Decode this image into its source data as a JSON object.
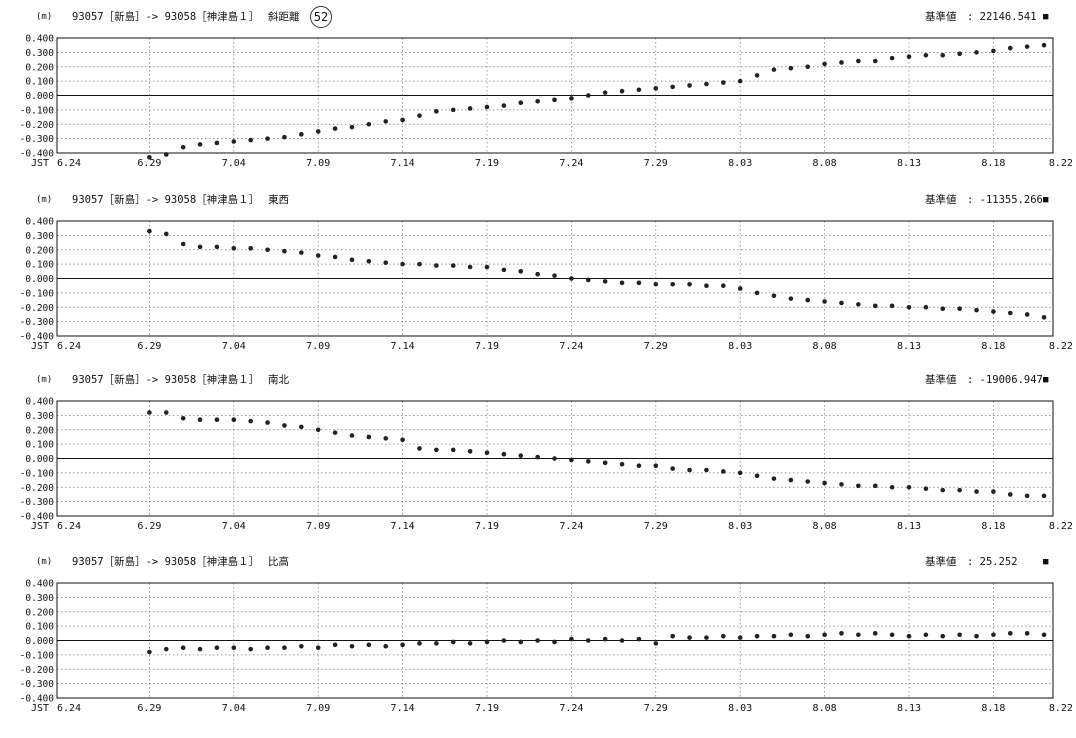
{
  "page_number": "52",
  "chart_data": [
    {
      "type": "scatter",
      "unit": "(m)",
      "station": "93057［新島］-> 93058［神津島１］",
      "component": "斜距離",
      "reference_label": "基準値",
      "reference_value": ": 22146.541",
      "marker": "■",
      "x_prefix": "JST",
      "x_ticks": [
        "6.24",
        "6.29",
        "7.04",
        "7.09",
        "7.14",
        "7.19",
        "7.24",
        "7.29",
        "8.03",
        "8.08",
        "8.13",
        "8.18",
        "8.22"
      ],
      "y_ticks": [
        "0.400",
        "0.300",
        "0.200",
        "0.100",
        "0.000",
        "-0.100",
        "-0.200",
        "-0.300",
        "-0.400"
      ],
      "ylim": [
        -0.4,
        0.4
      ],
      "grid": true,
      "series": [
        {
          "x": [
            "6.29",
            "6.30",
            "7.01",
            "7.02",
            "7.03",
            "7.04",
            "7.05",
            "7.06",
            "7.07",
            "7.08",
            "7.09",
            "7.10",
            "7.11",
            "7.12",
            "7.13",
            "7.14",
            "7.15",
            "7.16",
            "7.17",
            "7.18",
            "7.19",
            "7.20",
            "7.21",
            "7.22",
            "7.23",
            "7.24",
            "7.25",
            "7.26",
            "7.27",
            "7.28",
            "7.29",
            "7.30",
            "7.31",
            "8.01",
            "8.02",
            "8.03",
            "8.04",
            "8.05",
            "8.06",
            "8.07",
            "8.08",
            "8.09",
            "8.10",
            "8.11",
            "8.12",
            "8.13",
            "8.14",
            "8.15",
            "8.16",
            "8.17",
            "8.18",
            "8.19",
            "8.20",
            "8.21"
          ],
          "values": [
            -0.43,
            -0.41,
            -0.36,
            -0.34,
            -0.33,
            -0.32,
            -0.31,
            -0.3,
            -0.29,
            -0.27,
            -0.25,
            -0.23,
            -0.22,
            -0.2,
            -0.18,
            -0.17,
            -0.14,
            -0.11,
            -0.1,
            -0.09,
            -0.08,
            -0.07,
            -0.05,
            -0.04,
            -0.03,
            -0.02,
            0.0,
            0.02,
            0.03,
            0.04,
            0.05,
            0.06,
            0.07,
            0.08,
            0.09,
            0.1,
            0.14,
            0.18,
            0.19,
            0.2,
            0.22,
            0.23,
            0.24,
            0.24,
            0.26,
            0.27,
            0.28,
            0.28,
            0.29,
            0.3,
            0.31,
            0.33,
            0.34,
            0.35
          ]
        }
      ]
    },
    {
      "type": "scatter",
      "unit": "(m)",
      "station": "93057［新島］-> 93058［神津島１］",
      "component": "東西",
      "reference_label": "基準値",
      "reference_value": ": -11355.266",
      "marker": "■",
      "x_prefix": "JST",
      "x_ticks": [
        "6.24",
        "6.29",
        "7.04",
        "7.09",
        "7.14",
        "7.19",
        "7.24",
        "7.29",
        "8.03",
        "8.08",
        "8.13",
        "8.18",
        "8.22"
      ],
      "y_ticks": [
        "0.400",
        "0.300",
        "0.200",
        "0.100",
        "0.000",
        "-0.100",
        "-0.200",
        "-0.300",
        "-0.400"
      ],
      "ylim": [
        -0.4,
        0.4
      ],
      "grid": true,
      "series": [
        {
          "x": [
            "6.29",
            "6.30",
            "7.01",
            "7.02",
            "7.03",
            "7.04",
            "7.05",
            "7.06",
            "7.07",
            "7.08",
            "7.09",
            "7.10",
            "7.11",
            "7.12",
            "7.13",
            "7.14",
            "7.15",
            "7.16",
            "7.17",
            "7.18",
            "7.19",
            "7.20",
            "7.21",
            "7.22",
            "7.23",
            "7.24",
            "7.25",
            "7.26",
            "7.27",
            "7.28",
            "7.29",
            "7.30",
            "7.31",
            "8.01",
            "8.02",
            "8.03",
            "8.04",
            "8.05",
            "8.06",
            "8.07",
            "8.08",
            "8.09",
            "8.10",
            "8.11",
            "8.12",
            "8.13",
            "8.14",
            "8.15",
            "8.16",
            "8.17",
            "8.18",
            "8.19",
            "8.20",
            "8.21"
          ],
          "values": [
            0.33,
            0.31,
            0.24,
            0.22,
            0.22,
            0.21,
            0.21,
            0.2,
            0.19,
            0.18,
            0.16,
            0.15,
            0.13,
            0.12,
            0.11,
            0.1,
            0.1,
            0.09,
            0.09,
            0.08,
            0.08,
            0.06,
            0.05,
            0.03,
            0.02,
            0.0,
            -0.01,
            -0.02,
            -0.03,
            -0.03,
            -0.04,
            -0.04,
            -0.04,
            -0.05,
            -0.05,
            -0.07,
            -0.1,
            -0.12,
            -0.14,
            -0.15,
            -0.16,
            -0.17,
            -0.18,
            -0.19,
            -0.19,
            -0.2,
            -0.2,
            -0.21,
            -0.21,
            -0.22,
            -0.23,
            -0.24,
            -0.25,
            -0.27
          ]
        }
      ]
    },
    {
      "type": "scatter",
      "unit": "(m)",
      "station": "93057［新島］-> 93058［神津島１］",
      "component": "南北",
      "reference_label": "基準値",
      "reference_value": ": -19006.947",
      "marker": "■",
      "x_prefix": "JST",
      "x_ticks": [
        "6.24",
        "6.29",
        "7.04",
        "7.09",
        "7.14",
        "7.19",
        "7.24",
        "7.29",
        "8.03",
        "8.08",
        "8.13",
        "8.18",
        "8.22"
      ],
      "y_ticks": [
        "0.400",
        "0.300",
        "0.200",
        "0.100",
        "0.000",
        "-0.100",
        "-0.200",
        "-0.300",
        "-0.400"
      ],
      "ylim": [
        -0.4,
        0.4
      ],
      "grid": true,
      "series": [
        {
          "x": [
            "6.29",
            "6.30",
            "7.01",
            "7.02",
            "7.03",
            "7.04",
            "7.05",
            "7.06",
            "7.07",
            "7.08",
            "7.09",
            "7.10",
            "7.11",
            "7.12",
            "7.13",
            "7.14",
            "7.15",
            "7.16",
            "7.17",
            "7.18",
            "7.19",
            "7.20",
            "7.21",
            "7.22",
            "7.23",
            "7.24",
            "7.25",
            "7.26",
            "7.27",
            "7.28",
            "7.29",
            "7.30",
            "7.31",
            "8.01",
            "8.02",
            "8.03",
            "8.04",
            "8.05",
            "8.06",
            "8.07",
            "8.08",
            "8.09",
            "8.10",
            "8.11",
            "8.12",
            "8.13",
            "8.14",
            "8.15",
            "8.16",
            "8.17",
            "8.18",
            "8.19",
            "8.20",
            "8.21"
          ],
          "values": [
            0.32,
            0.32,
            0.28,
            0.27,
            0.27,
            0.27,
            0.26,
            0.25,
            0.23,
            0.22,
            0.2,
            0.18,
            0.16,
            0.15,
            0.14,
            0.13,
            0.07,
            0.06,
            0.06,
            0.05,
            0.04,
            0.03,
            0.02,
            0.01,
            0.0,
            -0.01,
            -0.02,
            -0.03,
            -0.04,
            -0.05,
            -0.05,
            -0.07,
            -0.08,
            -0.08,
            -0.09,
            -0.1,
            -0.12,
            -0.14,
            -0.15,
            -0.16,
            -0.17,
            -0.18,
            -0.19,
            -0.19,
            -0.2,
            -0.2,
            -0.21,
            -0.22,
            -0.22,
            -0.23,
            -0.23,
            -0.25,
            -0.26,
            -0.26
          ]
        }
      ]
    },
    {
      "type": "scatter",
      "unit": "(m)",
      "station": "93057［新島］-> 93058［神津島１］",
      "component": "比高",
      "reference_label": "基準値",
      "reference_value": ": 25.252",
      "marker": "■",
      "x_prefix": "JST",
      "x_ticks": [
        "6.24",
        "6.29",
        "7.04",
        "7.09",
        "7.14",
        "7.19",
        "7.24",
        "7.29",
        "8.03",
        "8.08",
        "8.13",
        "8.18",
        "8.22"
      ],
      "y_ticks": [
        "0.400",
        "0.300",
        "0.200",
        "0.100",
        "0.000",
        "-0.100",
        "-0.200",
        "-0.300",
        "-0.400"
      ],
      "ylim": [
        -0.4,
        0.4
      ],
      "grid": true,
      "series": [
        {
          "x": [
            "6.29",
            "6.30",
            "7.01",
            "7.02",
            "7.03",
            "7.04",
            "7.05",
            "7.06",
            "7.07",
            "7.08",
            "7.09",
            "7.10",
            "7.11",
            "7.12",
            "7.13",
            "7.14",
            "7.15",
            "7.16",
            "7.17",
            "7.18",
            "7.19",
            "7.20",
            "7.21",
            "7.22",
            "7.23",
            "7.24",
            "7.25",
            "7.26",
            "7.27",
            "7.28",
            "7.29",
            "7.30",
            "7.31",
            "8.01",
            "8.02",
            "8.03",
            "8.04",
            "8.05",
            "8.06",
            "8.07",
            "8.08",
            "8.09",
            "8.10",
            "8.11",
            "8.12",
            "8.13",
            "8.14",
            "8.15",
            "8.16",
            "8.17",
            "8.18",
            "8.19",
            "8.20",
            "8.21"
          ],
          "values": [
            -0.08,
            -0.06,
            -0.05,
            -0.06,
            -0.05,
            -0.05,
            -0.06,
            -0.05,
            -0.05,
            -0.04,
            -0.05,
            -0.03,
            -0.04,
            -0.03,
            -0.04,
            -0.03,
            -0.02,
            -0.02,
            -0.01,
            -0.02,
            -0.01,
            0.0,
            -0.01,
            0.0,
            -0.01,
            0.01,
            0.0,
            0.01,
            0.0,
            0.01,
            -0.02,
            0.03,
            0.02,
            0.02,
            0.03,
            0.02,
            0.03,
            0.03,
            0.04,
            0.03,
            0.04,
            0.05,
            0.04,
            0.05,
            0.04,
            0.03,
            0.04,
            0.03,
            0.04,
            0.03,
            0.04,
            0.05,
            0.05,
            0.04
          ]
        }
      ]
    }
  ]
}
